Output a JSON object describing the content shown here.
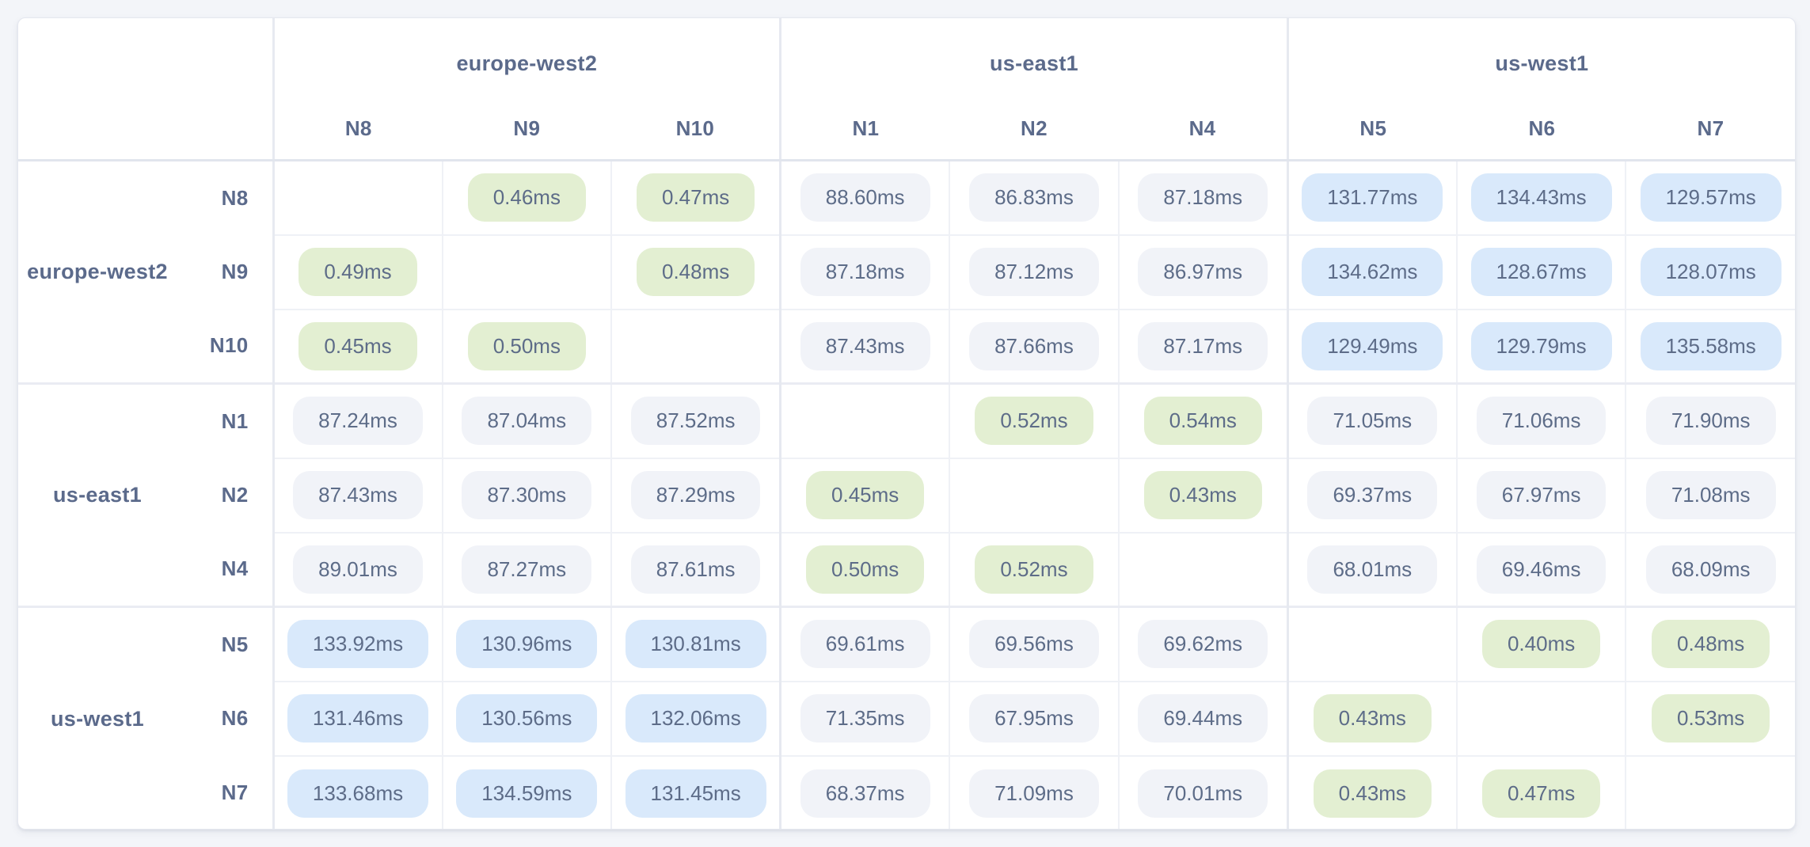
{
  "colors": {
    "page_bg": "#f3f5f9",
    "card_bg": "#ffffff",
    "card_border": "#e4e7ef",
    "grid_line": "#eff1f6",
    "section_line": "#e6e9f0",
    "header_divider": "#e1e5ed",
    "header_text": "#5b6a8b",
    "value_text": "#5d6c88",
    "pill_low_green": "#e3efd2",
    "pill_mid_gray": "#f1f3f8",
    "pill_high_blue": "#d9e9fb"
  },
  "matrix": {
    "unit": "ms",
    "tone_thresholds": {
      "low_below_ms": 1,
      "high_at_or_above_ms": 100
    },
    "column_groups": [
      {
        "label": "europe-west2",
        "nodes": [
          "N8",
          "N9",
          "N10"
        ]
      },
      {
        "label": "us-east1",
        "nodes": [
          "N1",
          "N2",
          "N4"
        ]
      },
      {
        "label": "us-west1",
        "nodes": [
          "N5",
          "N6",
          "N7"
        ]
      }
    ],
    "row_groups": [
      {
        "label": "europe-west2",
        "rows": [
          {
            "node": "N8",
            "cells": [
              null,
              "0.46ms",
              "0.47ms",
              "88.60ms",
              "86.83ms",
              "87.18ms",
              "131.77ms",
              "134.43ms",
              "129.57ms"
            ]
          },
          {
            "node": "N9",
            "cells": [
              "0.49ms",
              null,
              "0.48ms",
              "87.18ms",
              "87.12ms",
              "86.97ms",
              "134.62ms",
              "128.67ms",
              "128.07ms"
            ]
          },
          {
            "node": "N10",
            "cells": [
              "0.45ms",
              "0.50ms",
              null,
              "87.43ms",
              "87.66ms",
              "87.17ms",
              "129.49ms",
              "129.79ms",
              "135.58ms"
            ]
          }
        ]
      },
      {
        "label": "us-east1",
        "rows": [
          {
            "node": "N1",
            "cells": [
              "87.24ms",
              "87.04ms",
              "87.52ms",
              null,
              "0.52ms",
              "0.54ms",
              "71.05ms",
              "71.06ms",
              "71.90ms"
            ]
          },
          {
            "node": "N2",
            "cells": [
              "87.43ms",
              "87.30ms",
              "87.29ms",
              "0.45ms",
              null,
              "0.43ms",
              "69.37ms",
              "67.97ms",
              "71.08ms"
            ]
          },
          {
            "node": "N4",
            "cells": [
              "89.01ms",
              "87.27ms",
              "87.61ms",
              "0.50ms",
              "0.52ms",
              null,
              "68.01ms",
              "69.46ms",
              "68.09ms"
            ]
          }
        ]
      },
      {
        "label": "us-west1",
        "rows": [
          {
            "node": "N5",
            "cells": [
              "133.92ms",
              "130.96ms",
              "130.81ms",
              "69.61ms",
              "69.56ms",
              "69.62ms",
              null,
              "0.40ms",
              "0.48ms"
            ]
          },
          {
            "node": "N6",
            "cells": [
              "131.46ms",
              "130.56ms",
              "132.06ms",
              "71.35ms",
              "67.95ms",
              "69.44ms",
              "0.43ms",
              null,
              "0.53ms"
            ]
          },
          {
            "node": "N7",
            "cells": [
              "133.68ms",
              "134.59ms",
              "131.45ms",
              "68.37ms",
              "71.09ms",
              "70.01ms",
              "0.43ms",
              "0.47ms",
              null
            ]
          }
        ]
      }
    ]
  }
}
